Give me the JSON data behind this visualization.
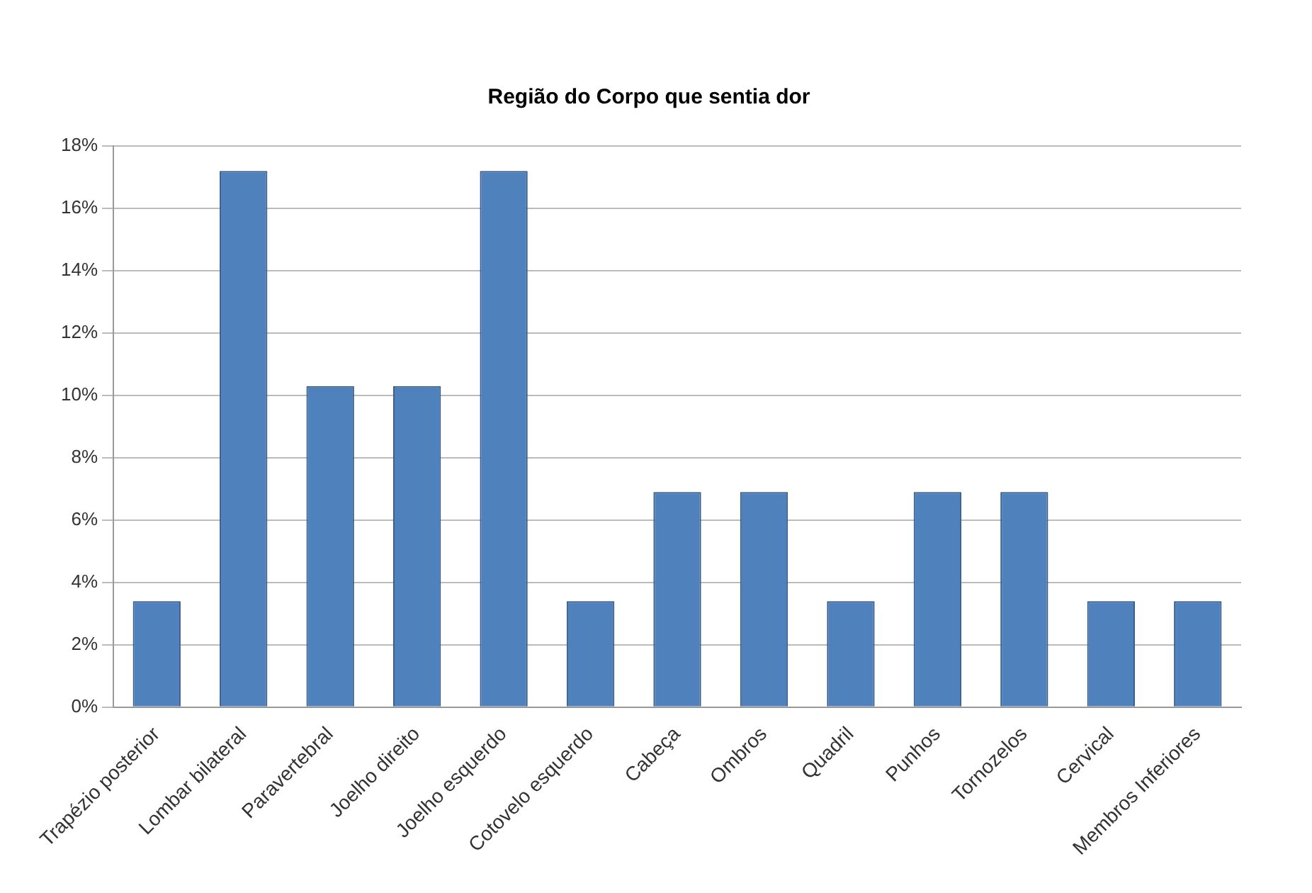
{
  "chart_data": {
    "type": "bar",
    "title": "Região do Corpo que sentia dor",
    "categories": [
      "Trapézio posterior",
      "Lombar bilateral",
      "Paravertebral",
      "Joelho direito",
      "Joelho esquerdo",
      "Cotovelo esquerdo",
      "Cabeça",
      "Ombros",
      "Quadril",
      "Punhos",
      "Tornozelos",
      "Cervical",
      "Membros Inferiores"
    ],
    "values": [
      3.4,
      17.2,
      10.3,
      10.3,
      17.2,
      3.4,
      6.9,
      6.9,
      3.4,
      6.9,
      6.9,
      3.4,
      3.4
    ],
    "color": "#4f81bd",
    "ylim": [
      0,
      18
    ],
    "yticks": [
      {
        "value": 0,
        "label": "0%"
      },
      {
        "value": 2,
        "label": "2%"
      },
      {
        "value": 4,
        "label": "4%"
      },
      {
        "value": 6,
        "label": "6%"
      },
      {
        "value": 8,
        "label": "8%"
      },
      {
        "value": 10,
        "label": "10%"
      },
      {
        "value": 12,
        "label": "12%"
      },
      {
        "value": 14,
        "label": "14%"
      },
      {
        "value": 16,
        "label": "16%"
      },
      {
        "value": 18,
        "label": "18%"
      }
    ],
    "grid": "y",
    "legend": false
  }
}
